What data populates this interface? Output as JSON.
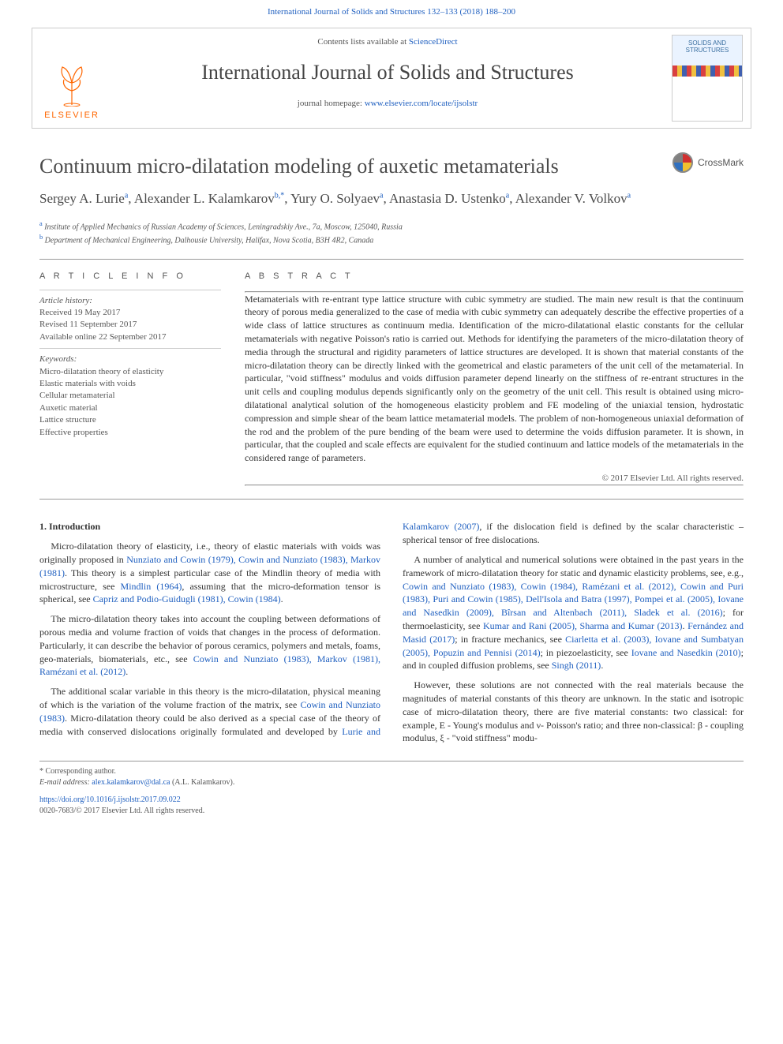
{
  "colors": {
    "link": "#2060c0",
    "text": "#333333",
    "muted": "#555555",
    "rule": "#999999",
    "elsevier_orange": "#ff6600",
    "background": "#ffffff"
  },
  "typography": {
    "body_font": "Georgia, 'Times New Roman', serif",
    "ui_font": "Arial, sans-serif",
    "title_fontsize_pt": 20,
    "journal_fontsize_pt": 20,
    "body_fontsize_pt": 9,
    "abstract_fontsize_pt": 9
  },
  "header": {
    "citation": "International Journal of Solids and Structures 132–133 (2018) 188–200"
  },
  "masthead": {
    "contents_prefix": "Contents lists available at ",
    "contents_link": "ScienceDirect",
    "journal_name": "International Journal of Solids and Structures",
    "homepage_prefix": "journal homepage: ",
    "homepage_link": "www.elsevier.com/locate/ijsolstr",
    "publisher_label": "ELSEVIER",
    "cover_title": "SOLIDS AND STRUCTURES"
  },
  "article": {
    "title": "Continuum micro-dilatation modeling of auxetic metamaterials",
    "crossmark_label": "CrossMark",
    "authors_html": "Sergey A. Lurie<sup>a</sup>, Alexander L. Kalamkarov<sup>b,*</sup>, Yury O. Solyaev<sup>a</sup>, Anastasia D. Ustenko<sup>a</sup>, Alexander V. Volkov<sup>a</sup>",
    "authors_plain": "Sergey A. Lurie a, Alexander L. Kalamkarov b,*, Yury O. Solyaev a, Anastasia D. Ustenko a, Alexander V. Volkov a",
    "affiliations": {
      "a": "Institute of Applied Mechanics of Russian Academy of Sciences, Leningradskiy Ave., 7a, Moscow, 125040, Russia",
      "b": "Department of Mechanical Engineering, Dalhousie University, Halifax, Nova Scotia, B3H 4R2, Canada"
    }
  },
  "meta": {
    "info_heading": "A R T I C L E   I N F O",
    "history_label": "Article history:",
    "history": [
      "Received 19 May 2017",
      "Revised 11 September 2017",
      "Available online 22 September 2017"
    ],
    "keywords_label": "Keywords:",
    "keywords": [
      "Micro-dilatation theory of elasticity",
      "Elastic materials with voids",
      "Cellular metamaterial",
      "Auxetic material",
      "Lattice structure",
      "Effective properties"
    ]
  },
  "abstract": {
    "heading": "A B S T R A C T",
    "text": "Metamaterials with re-entrant type lattice structure with cubic symmetry are studied. The main new result is that the continuum theory of porous media generalized to the case of media with cubic symmetry can adequately describe the effective properties of a wide class of lattice structures as continuum media. Identification of the micro-dilatational elastic constants for the cellular metamaterials with negative Poisson's ratio is carried out. Methods for identifying the parameters of the micro-dilatation theory of media through the structural and rigidity parameters of lattice structures are developed. It is shown that material constants of the micro-dilatation theory can be directly linked with the geometrical and elastic parameters of the unit cell of the metamaterial. In particular, \"void stiffness\" modulus and voids diffusion parameter depend linearly on the stiffness of re-entrant structures in the unit cells and coupling modulus depends significantly only on the geometry of the unit cell. This result is obtained using micro-dilatational analytical solution of the homogeneous elasticity problem and FE modeling of the uniaxial tension, hydrostatic compression and simple shear of the beam lattice metamaterial models. The problem of non-homogeneous uniaxial deformation of the rod and the problem of the pure bending of the beam were used to determine the voids diffusion parameter. It is shown, in particular, that the coupled and scale effects are equivalent for the studied continuum and lattice models of the metamaterials in the considered range of parameters.",
    "copyright": "© 2017 Elsevier Ltd. All rights reserved."
  },
  "body": {
    "section_heading": "1. Introduction",
    "p1_pre": "Micro-dilatation theory of elasticity, i.e., theory of elastic materials with voids was originally proposed in ",
    "p1_ref1": "Nunziato and Cowin (1979), Cowin and Nunziato (1983), Markov (1981)",
    "p1_mid1": ". This theory is a simplest particular case of the Mindlin theory of media with microstructure, see ",
    "p1_ref2": "Mindlin (1964)",
    "p1_mid2": ", assuming that the micro-deformation tensor is spherical, see ",
    "p1_ref3": "Capriz and Podio-Guidugli (1981), Cowin (1984)",
    "p1_post": ".",
    "p2_pre": "The micro-dilatation theory takes into account the coupling between deformations of porous media and volume fraction of voids that changes in the process of deformation. Particularly, it can describe the behavior of porous ceramics, polymers and metals, foams, geo-materials, biomaterials, etc., see ",
    "p2_ref1": "Cowin and Nunziato (1983), Markov (1981), Ramézani et al. (2012)",
    "p2_post": ".",
    "p3_pre": "The additional scalar variable in this theory is the micro-dilatation, physical meaning of which is the variation of the volume fraction of the matrix, see ",
    "p3_ref1": "Cowin and Nunziato (1983)",
    "p3_mid1": ". Micro-dilatation theory could be also derived as a special case of the theory of media with conserved dislocations originally formulated and developed by ",
    "p3_ref2": "Lurie and Kalamkarov (2007)",
    "p3_post": ", if the dislocation field is defined by the scalar characteristic – spherical tensor of free dislocations.",
    "p4_pre": "A number of analytical and numerical solutions were obtained in the past years in the framework of micro-dilatation theory for static and dynamic elasticity problems, see, e.g., ",
    "p4_ref1": "Cowin and Nunziato (1983), Cowin (1984), Ramézani et al. (2012), Cowin and Puri (1983), Puri and Cowin (1985), Dell'Isola and Batra (1997), Pompei et al. (2005), Iovane and Nasedkin (2009), Bîrsan and Altenbach (2011), Sladek et al. (2016)",
    "p4_mid1": "; for thermoelasticity, see ",
    "p4_ref2": "Kumar and Rani (2005), Sharma and Kumar (2013)",
    "p4_mid2": ". ",
    "p4_ref2b": "Fernández and Masid (2017)",
    "p4_mid3": "; in fracture mechanics, see ",
    "p4_ref3": "Ciarletta et al. (2003), Iovane and Sumbatyan (2005), Popuzin and Pennisi (2014)",
    "p4_mid4": "; in piezoelasticity, see ",
    "p4_ref4": "Iovane and Nasedkin (2010)",
    "p4_mid5": "; and in coupled diffusion problems, see ",
    "p4_ref5": "Singh (2011)",
    "p4_post": ".",
    "p5": "However, these solutions are not connected with the real materials because the magnitudes of material constants of this theory are unknown. In the static and isotropic case of micro-dilatation theory, there are five material constants: two classical: for example, E - Young's modulus and ν- Poisson's ratio; and three non-classical: β - coupling modulus, ξ - \"void stiffness\" modu-"
  },
  "footer": {
    "corresponding_label": "* Corresponding author.",
    "email_label": "E-mail address: ",
    "email": "alex.kalamkarov@dal.ca",
    "email_suffix": " (A.L. Kalamkarov).",
    "doi": "https://doi.org/10.1016/j.ijsolstr.2017.09.022",
    "issn_line": "0020-7683/© 2017 Elsevier Ltd. All rights reserved."
  }
}
